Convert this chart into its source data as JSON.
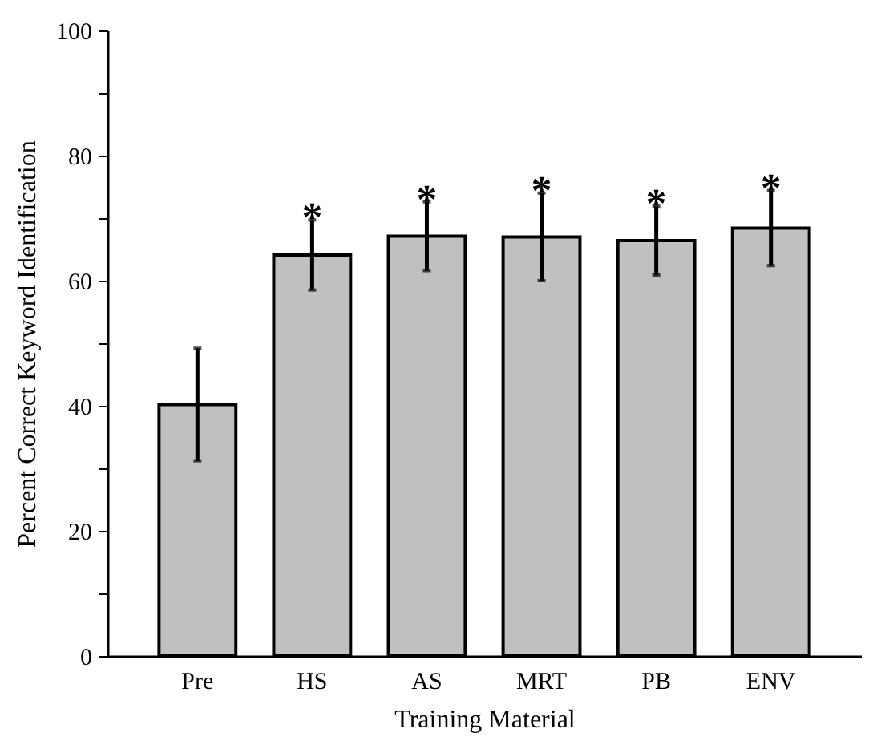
{
  "chart_data": {
    "type": "bar",
    "xlabel": "Training Material",
    "ylabel": "Percent Correct Keyword Identification",
    "categories": [
      "Pre",
      "HS",
      "AS",
      "MRT",
      "PB",
      "ENV"
    ],
    "series": [
      {
        "color": "#c0c0c0",
        "values": [
          40.2,
          64.1,
          67.1,
          67,
          66.4,
          68.4
        ],
        "errors": [
          9,
          5.6,
          5.5,
          7,
          5.5,
          6
        ]
      }
    ],
    "ylim": [
      0,
      100
    ],
    "yticks": [
      0,
      {
        "value": 10,
        "label": null
      },
      20,
      {
        "value": 30,
        "label": null
      },
      40,
      {
        "value": 50,
        "label": null
      },
      60,
      {
        "value": 70,
        "label": null
      },
      80,
      {
        "value": 90,
        "label": null
      },
      100
    ],
    "annotations": [
      {
        "text": "*",
        "x": "HS"
      },
      {
        "text": "*",
        "x": "AS"
      },
      {
        "text": "*",
        "x": "MRT"
      },
      {
        "text": "*",
        "x": "PB"
      },
      {
        "text": "*",
        "x": "ENV"
      }
    ]
  }
}
